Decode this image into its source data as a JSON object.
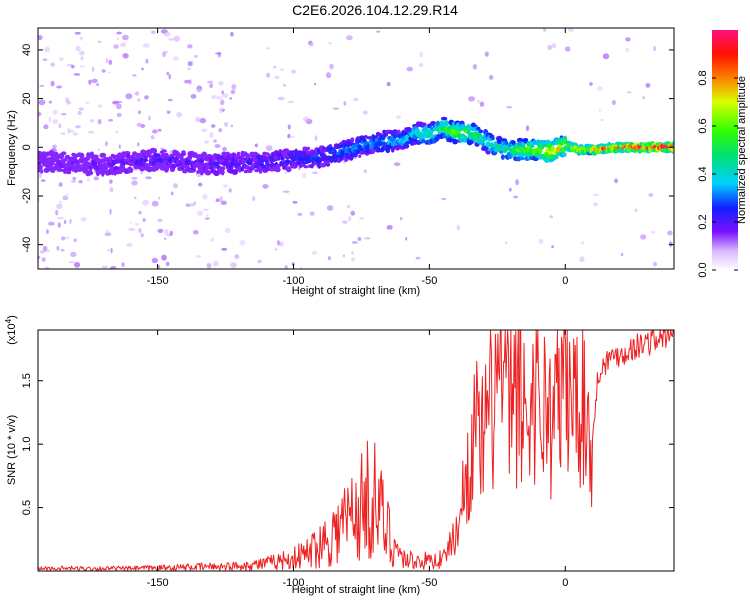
{
  "title": "C2E6.2026.104.12.29.R14",
  "chart_data": [
    {
      "type": "heatmap",
      "xlabel": "Height of straight line (km)",
      "ylabel": "Frequency (Hz)",
      "xlim": [
        -194,
        40
      ],
      "ylim": [
        -50,
        49
      ],
      "xticks": [
        -150,
        -100,
        -50,
        0
      ],
      "yticks": [
        -40,
        -20,
        0,
        20,
        40
      ],
      "ridge": {
        "x": [
          -190,
          -170,
          -150,
          -130,
          -110,
          -90,
          -80,
          -70,
          -60,
          -55,
          -50,
          -45,
          -40,
          -35,
          -30,
          -25,
          -20,
          -10,
          -5,
          0,
          5,
          10,
          20,
          30,
          40
        ],
        "y": [
          -6,
          -7,
          -5,
          -7,
          -6,
          -4,
          -1,
          2,
          3,
          6,
          5,
          8,
          6,
          6,
          3,
          0,
          -1,
          -1,
          -2,
          1,
          -1,
          -1,
          0,
          0,
          0
        ],
        "amplitude": [
          0.05,
          0.08,
          0.12,
          0.1,
          0.15,
          0.2,
          0.25,
          0.28,
          0.3,
          0.35,
          0.4,
          0.45,
          0.55,
          0.5,
          0.4,
          0.4,
          0.45,
          0.6,
          0.7,
          0.65,
          0.7,
          0.75,
          0.8,
          0.9,
          0.95
        ]
      },
      "colorbar": {
        "label": "Normalized spectral amplitude",
        "ticks": [
          0.0,
          0.2,
          0.4,
          0.6,
          0.8
        ],
        "range": [
          0,
          1
        ]
      }
    },
    {
      "type": "line",
      "xlabel": "Height of straight line (km)",
      "ylabel": "SNR (10 * v/v)",
      "multiplier_label": "(x10",
      "multiplier_exp": "4",
      "xlim": [
        -194,
        40
      ],
      "ylim": [
        0,
        1.9
      ],
      "xticks": [
        -150,
        -100,
        -50,
        0
      ],
      "yticks": [
        0.5,
        1.0,
        1.5
      ],
      "series": [
        {
          "color": "#ef2020",
          "x": [
            -194,
            -180,
            -160,
            -140,
            -120,
            -110,
            -100,
            -95,
            -90,
            -85,
            -80,
            -75,
            -72,
            -70,
            -67,
            -65,
            -60,
            -55,
            -50,
            -45,
            -40,
            -36,
            -33,
            -30,
            -27,
            -24,
            -22,
            -20,
            -17,
            -14,
            -11,
            -8,
            -5,
            -2,
            0,
            3,
            6,
            9,
            10,
            12,
            15,
            18,
            22,
            26,
            30,
            35,
            40
          ],
          "y": [
            0.02,
            0.02,
            0.02,
            0.03,
            0.04,
            0.06,
            0.1,
            0.14,
            0.22,
            0.3,
            0.42,
            0.5,
            0.6,
            0.55,
            0.4,
            0.3,
            0.1,
            0.08,
            0.08,
            0.1,
            0.3,
            0.8,
            1.1,
            1.0,
            1.3,
            1.6,
            1.4,
            1.3,
            1.4,
            1.2,
            1.5,
            1.3,
            1.2,
            1.4,
            1.5,
            1.3,
            1.45,
            1.1,
            1.0,
            1.55,
            1.65,
            1.7,
            1.72,
            1.77,
            1.8,
            1.84,
            1.86
          ]
        }
      ]
    }
  ],
  "colors": {
    "axis": "#000000",
    "line": "#ef2020",
    "background": "#ffffff"
  }
}
